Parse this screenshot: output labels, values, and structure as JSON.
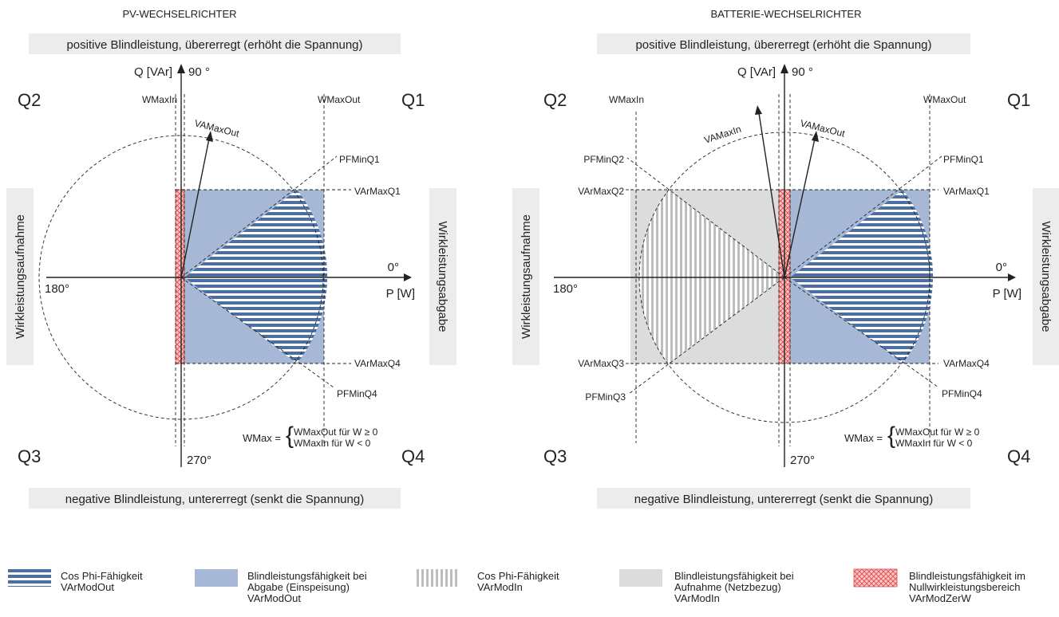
{
  "panels": [
    {
      "title": "PV-WECHSELRICHTER",
      "top_banner": "positive Blindleistung, übererregt (erhöht die Spannung)",
      "bottom_banner": "negative Blindleistung, untererregt (senkt die Spannung)",
      "left_side": "Wirkleistungsaufnahme",
      "right_side": "Wirkleistungsabgabe",
      "q_axis": "Q [VAr]",
      "p_axis": "P [W]",
      "deg90": "90 °",
      "deg0": "0°",
      "deg180": "180°",
      "deg270": "270°",
      "quadrants": {
        "q1": "Q1",
        "q2": "Q2",
        "q3": "Q3",
        "q4": "Q4"
      },
      "labels": {
        "wmaxin": "WMaxIn",
        "wmaxout": "WMaxOut",
        "vamaxout": "VAMaxOut",
        "pfminq1": "PFMinQ1",
        "varmaxq1": "VArMaxQ1",
        "varmaxq4": "VArMaxQ4",
        "pfminq4": "PFMinQ4"
      },
      "formula": {
        "lhs": "WMax =",
        "line1": "WMaxOut für W ≥ 0",
        "line2": "WMaxIn für W < 0"
      }
    },
    {
      "title": "BATTERIE-WECHSELRICHTER",
      "top_banner": "positive Blindleistung, übererregt (erhöht die Spannung)",
      "bottom_banner": "negative Blindleistung, untererregt (senkt die Spannung)",
      "left_side": "Wirkleistungsaufnahme",
      "right_side": "Wirkleistungsabgabe",
      "q_axis": "Q [VAr]",
      "p_axis": "P [W]",
      "deg90": "90 °",
      "deg0": "0°",
      "deg180": "180°",
      "deg270": "270°",
      "quadrants": {
        "q1": "Q1",
        "q2": "Q2",
        "q3": "Q3",
        "q4": "Q4"
      },
      "labels": {
        "wmaxin": "WMaxIn",
        "wmaxout": "WMaxOut",
        "vamaxin": "VAMaxIn",
        "vamaxout": "VAMaxOut",
        "pfminq1": "PFMinQ1",
        "pfminq2": "PFMinQ2",
        "varmaxq1": "VArMaxQ1",
        "varmaxq2": "VArMaxQ2",
        "varmaxq3": "VArMaxQ3",
        "varmaxq4": "VArMaxQ4",
        "pfminq3": "PFMinQ3",
        "pfminq4": "PFMinQ4"
      },
      "formula": {
        "lhs": "WMax =",
        "line1": "WMaxOut für W ≥ 0",
        "line2": "WMaxIn für W < 0"
      }
    }
  ],
  "legend": [
    {
      "pattern": "hstripe",
      "line1": "Cos Phi-Fähigkeit",
      "line2": "VArModOut",
      "line3": ""
    },
    {
      "pattern": "blue",
      "line1": "Blindleistungsfähigkeit bei",
      "line2": "Abgabe (Einspeisung)",
      "line3": "VArModOut"
    },
    {
      "pattern": "vstripe",
      "line1": "Cos Phi-Fähigkeit",
      "line2": "VArModIn",
      "line3": ""
    },
    {
      "pattern": "grey",
      "line1": "Blindleistungsfähigkeit bei",
      "line2": "Aufnahme (Netzbezug)",
      "line3": "VArModIn"
    },
    {
      "pattern": "redhatch",
      "line1": "Blindleistungsfähigkeit im",
      "line2": "Nullwirkleistungsbereich",
      "line3": "VArModZerW"
    }
  ],
  "colors": {
    "blue_area": "#a7b8d6",
    "stripe": "#4b6ea3",
    "grey_area": "#dcdcdc",
    "vstripe": "#bdbdbd",
    "red_hatch": "#e24b4b",
    "red_fill": "#f6c5c5",
    "banner_bg": "#ececec"
  }
}
